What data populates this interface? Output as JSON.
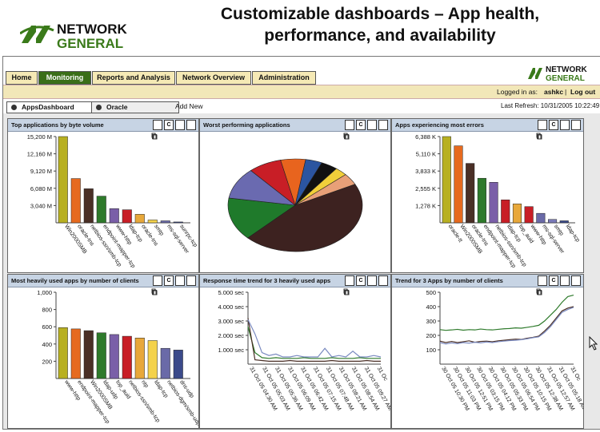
{
  "slide": {
    "title_line1": "Customizable dashboards – App health,",
    "title_line2": "performance, and availability",
    "logo_top": "NETWORK",
    "logo_bottom": "GENERAL"
  },
  "app": {
    "logo_top": "NETWORK",
    "logo_bottom": "GENERAL",
    "nav": [
      "Home",
      "Monitoring",
      "Reports and Analysis",
      "Network Overview",
      "Administration"
    ],
    "active_nav": "Monitoring",
    "logged_in_label": "Logged in as:",
    "user": "ashkc",
    "separator": "|",
    "logout": "Log out",
    "dash_tabs": [
      "AppsDashboard",
      "Oracle"
    ],
    "add_new": "Add New",
    "last_refresh": "Last Refresh: 10/31/2005 10:22:49",
    "icons": [
      "edit-icon",
      "copy-icon",
      "export-icon",
      "delete-icon"
    ],
    "icon_labels": {
      "copy": "C"
    }
  },
  "panels": {
    "p1_title": "Top applications by byte volume",
    "p2_title": "Worst performing applications",
    "p3_title": "Apps experiencing most errors",
    "p4_title": "Most heavily used apps by number of clients",
    "p5_title": "Response time trend for 3 heavily used apps",
    "p6_title": "Trend for 3 Apps by number of clients"
  },
  "chart_data": [
    {
      "type": "bar",
      "title": "Top applications by byte volume",
      "categories": [
        "Win2000SMB",
        "oracle-tns",
        "netbios-ssn/smb-tcp",
        "endpoint-mapper-tcp",
        "www-http",
        "ldap-tcp",
        "oracle-tns",
        "smtp",
        "ms-sql-server",
        "sunrpc-tcp"
      ],
      "values": [
        15200,
        7800,
        6000,
        4700,
        2500,
        2300,
        1500,
        500,
        350,
        150
      ],
      "colors": [
        "#b8b021",
        "#e66a1f",
        "#4a2f26",
        "#2e7a2b",
        "#7a5fa8",
        "#c81e26",
        "#e8a83a",
        "#f4d24a",
        "#6a6aa8",
        "#3b4a8a"
      ],
      "yticks": [
        "3,040 M",
        "6,080 M",
        "9,120 M",
        "12,160 M",
        "15,200 M"
      ],
      "ylim": [
        0,
        15200
      ]
    },
    {
      "type": "pie",
      "title": "Worst performing applications",
      "values": [
        45,
        15,
        11,
        8,
        6,
        4,
        4,
        3,
        4
      ],
      "colors": [
        "#3d2220",
        "#1f7a2b",
        "#6a6ab0",
        "#c81e26",
        "#e8641e",
        "#2b55a0",
        "#111111",
        "#f1cf3a",
        "#e8a078"
      ]
    },
    {
      "type": "bar",
      "title": "Apps experiencing most errors",
      "categories": [
        "oracle-tt",
        "Win2000SMB",
        "oracle-tns",
        "endpoint-mapper-tcp",
        "netbios-ssn/smb-tcp",
        "ldap-tcp",
        "top_auid",
        "www-http",
        "ms-sql-server",
        "smtp",
        "ldap-tcp"
      ],
      "values": [
        6388,
        5700,
        4400,
        3300,
        3000,
        1700,
        1400,
        1200,
        700,
        250,
        150
      ],
      "colors": [
        "#b8b021",
        "#e66a1f",
        "#4a2f26",
        "#2e7a2b",
        "#7a5fa8",
        "#c81e26",
        "#e8a83a",
        "#c81e26",
        "#6a6aa8",
        "#7a7ab8",
        "#3b4a8a"
      ],
      "yticks": [
        "1,278 K",
        "2,555 K",
        "3,833 K",
        "5,110 K",
        "6,388 K"
      ],
      "ylim": [
        0,
        6388
      ]
    },
    {
      "type": "bar",
      "title": "Most heavily used apps by number of clients",
      "categories": [
        "www-http",
        "endpoint-mapper-tcp",
        "Win2000SMB",
        "ldap-udp",
        "top_auid",
        "netbios-ssn/smb-tcp",
        "ntp",
        "ldap-tcp",
        "netbios-dgm/smb-udp",
        "dns-udp"
      ],
      "values": [
        590,
        575,
        555,
        530,
        510,
        490,
        470,
        440,
        350,
        330
      ],
      "colors": [
        "#b8b021",
        "#e66a1f",
        "#4a2f26",
        "#2e7a2b",
        "#7a5fa8",
        "#c81e26",
        "#e8a83a",
        "#f4d24a",
        "#6a6aa8",
        "#3b4a8a"
      ],
      "yticks": [
        "200",
        "400",
        "600",
        "800",
        "1,000"
      ],
      "ylim": [
        0,
        1000
      ]
    },
    {
      "type": "line",
      "title": "Response time trend for 3 heavily used apps",
      "yticks": [
        "1.000 sec",
        "2.000 sec",
        "3.000 sec",
        "4.000 sec",
        "5.000 sec"
      ],
      "ylim": [
        0,
        5
      ],
      "xlabels": [
        "31 Oct 05 04:30 AM",
        "31 Oct 05 05:03 AM",
        "31 Oct 05 05:36 AM",
        "31 Oct 05 06:09 AM",
        "31 Oct 05 06:42 AM",
        "31 Oct 05 07:15 AM",
        "31 Oct 05 07:48 AM",
        "31 Oct 05 08:21 AM",
        "31 Oct 05 08:54 AM",
        "31 Oct 05 09:27 AM",
        "31 Oc"
      ],
      "series": [
        {
          "color": "#2e7a2b",
          "values": [
            2.6,
            0.8,
            0.45,
            0.4,
            0.45,
            0.4,
            0.4,
            0.4,
            0.45,
            0.4,
            0.4,
            0.4,
            0.45,
            0.4,
            0.4,
            0.4,
            0.45,
            0.4,
            0.4,
            0.4
          ]
        },
        {
          "color": "#4a2f26",
          "values": [
            3.2,
            0.3,
            0.25,
            0.2,
            0.2,
            0.2,
            0.25,
            0.2,
            0.2,
            0.2,
            0.2,
            0.2,
            0.25,
            0.2,
            0.2,
            0.2,
            0.2,
            0.25,
            0.2,
            0.2
          ]
        },
        {
          "color": "#7a8ac0",
          "values": [
            3.1,
            2.1,
            0.8,
            0.6,
            0.7,
            0.5,
            0.5,
            0.6,
            0.5,
            0.5,
            0.5,
            1.1,
            0.5,
            0.6,
            0.5,
            0.9,
            0.5,
            0.5,
            0.6,
            0.5
          ]
        }
      ]
    },
    {
      "type": "line",
      "title": "Trend for 3 Apps by number of clients",
      "yticks": [
        "100",
        "200",
        "300",
        "400",
        "500"
      ],
      "ylim": [
        0,
        500
      ],
      "xlabels": [
        "30 Oct 05 10:30 PM",
        "30 Oct 05 11:03 PM",
        "30 Oct 05 12:51 PM",
        "30 Oct 05 03:15 PM",
        "30 Oct 05 04:12 PM",
        "30 Oct 05 05:33 PM",
        "30 Oct 05 06:54 PM",
        "30 Oct 05 10:15 PM",
        "30 Oct 05 12:38 AM",
        "31 Oct 05 12:57 AM",
        "31 Oct 05 05:18 AM",
        "31 Oc"
      ],
      "series": [
        {
          "color": "#2e7a2b",
          "values": [
            240,
            235,
            238,
            242,
            236,
            240,
            238,
            244,
            240,
            238,
            242,
            246,
            248,
            252,
            250,
            256,
            262,
            270,
            300,
            340,
            380,
            430,
            470,
            480
          ]
        },
        {
          "color": "#4a2f26",
          "values": [
            160,
            150,
            158,
            150,
            156,
            162,
            152,
            158,
            160,
            156,
            162,
            166,
            170,
            174,
            172,
            180,
            186,
            195,
            230,
            270,
            320,
            370,
            390,
            400
          ]
        },
        {
          "color": "#7a8ac0",
          "values": [
            150,
            140,
            148,
            142,
            150,
            146,
            152,
            148,
            154,
            150,
            156,
            160,
            164,
            166,
            170,
            176,
            184,
            190,
            220,
            260,
            310,
            360,
            380,
            395
          ]
        }
      ]
    }
  ]
}
